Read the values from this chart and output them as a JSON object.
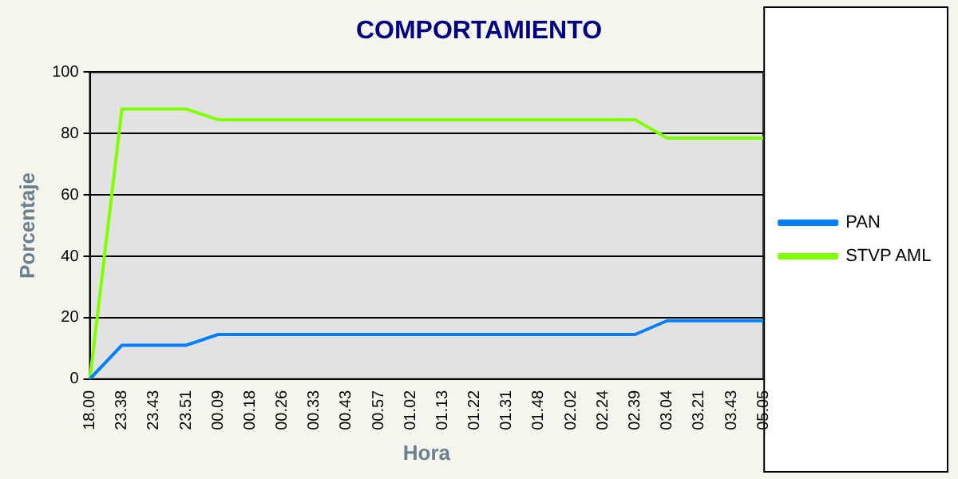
{
  "chart_data": {
    "type": "line",
    "title": "COMPORTAMIENTO",
    "xlabel": "Hora",
    "ylabel": "Porcentaje",
    "categories": [
      "18.00",
      "23.38",
      "23.43",
      "23.51",
      "00.09",
      "00.18",
      "00.26",
      "00.33",
      "00.43",
      "00.57",
      "01.02",
      "01.13",
      "01.22",
      "01.31",
      "01.48",
      "02.02",
      "02.24",
      "02.39",
      "03.04",
      "03.21",
      "03.43",
      "05.05"
    ],
    "series": [
      {
        "name": "PAN",
        "color": "#0080ff",
        "values": [
          0,
          11,
          11,
          11,
          14.5,
          14.5,
          14.5,
          14.5,
          14.5,
          14.5,
          14.5,
          14.5,
          14.5,
          14.5,
          14.5,
          14.5,
          14.5,
          14.5,
          19,
          19,
          19,
          19
        ]
      },
      {
        "name": "STVP AML",
        "color": "#80ff00",
        "values": [
          0,
          88,
          88,
          88,
          84.5,
          84.5,
          84.5,
          84.5,
          84.5,
          84.5,
          84.5,
          84.5,
          84.5,
          84.5,
          84.5,
          84.5,
          84.5,
          84.5,
          78.5,
          78.5,
          78.5,
          78.5
        ]
      }
    ],
    "ylim": [
      0,
      100
    ],
    "yticks": [
      0,
      20,
      40,
      60,
      80,
      100
    ],
    "grid": "y",
    "legend": "right",
    "marker": "none",
    "line_style": "solid"
  }
}
